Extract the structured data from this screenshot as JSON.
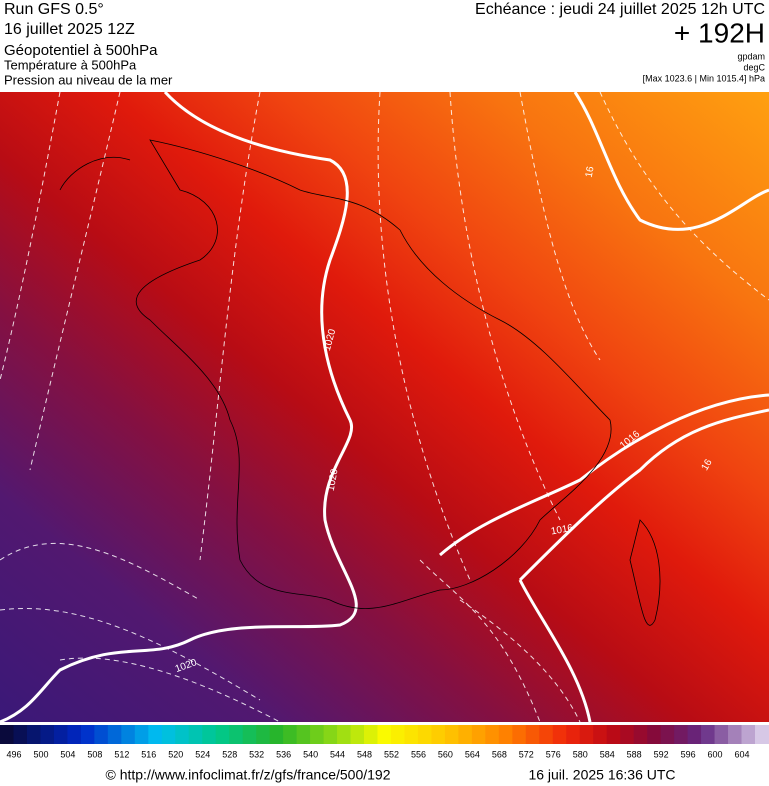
{
  "header": {
    "run": "Run GFS 0.5°",
    "date": "16 juillet 2025 12Z",
    "fields": [
      "Géopotentiel à 500hPa",
      "Température à 500hPa",
      "Pression au niveau de la mer"
    ],
    "valid": "Echéance : jeudi 24 juillet 2025 12h UTC",
    "lead": "+ 192H",
    "units": [
      "gpdam",
      "degC",
      "[Max 1023.6 | Min 1015.4] hPa"
    ]
  },
  "map": {
    "contour_labels": [
      "1020",
      "1020",
      "1020",
      "1016",
      "1016",
      "16",
      "16"
    ]
  },
  "legend": {
    "labels": [
      496,
      500,
      504,
      508,
      512,
      516,
      520,
      524,
      528,
      532,
      536,
      540,
      544,
      548,
      552,
      556,
      560,
      564,
      568,
      572,
      576,
      580,
      584,
      588,
      592,
      596,
      600,
      604
    ]
  },
  "footer": {
    "source": "© http://www.infoclimat.fr/z/gfs/france/500/192",
    "timestamp": "16 juil. 2025 16:36 UTC"
  }
}
